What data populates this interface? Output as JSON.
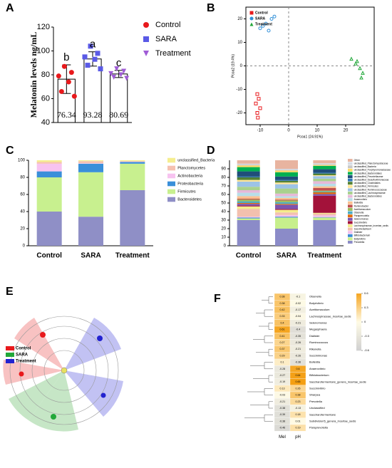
{
  "chart_data": [
    {
      "type": "bar",
      "panel_label": "A",
      "ylabel": "Melatonin levels ng/mL",
      "categories": [
        "Control",
        "SARA",
        "Treatment"
      ],
      "values": [
        76.34,
        93.28,
        80.69
      ],
      "errors": [
        12,
        6,
        3
      ],
      "annotations": [
        "b",
        "a",
        "c"
      ],
      "points": [
        [
          87,
          82,
          79,
          74,
          66,
          62
        ],
        [
          104,
          98,
          95,
          93,
          88,
          85
        ],
        [
          85,
          83,
          81,
          80,
          78,
          77
        ]
      ],
      "colors": [
        "#e8191c",
        "#5a5ae6",
        "#a05cd6"
      ],
      "markers": [
        "circle",
        "square",
        "triangle-down"
      ],
      "ylim": [
        40,
        120
      ],
      "yticks": [
        40,
        60,
        80,
        100,
        120
      ]
    },
    {
      "type": "scatter",
      "panel_label": "B",
      "xlabel": "Pcoa1 (24.91%)",
      "ylabel": "Pcoa2 (19.4%)",
      "xlim": [
        -15,
        30
      ],
      "xticks": [
        -10,
        0,
        10,
        20
      ],
      "ylim": [
        -25,
        25
      ],
      "yticks": [
        -20,
        -10,
        0,
        10,
        20
      ],
      "series": [
        {
          "name": "Control",
          "color": "#e8191c",
          "marker": "square",
          "x": [
            -11,
            -10.5,
            -11.5,
            -10,
            -11,
            -10.8
          ],
          "y": [
            -12,
            -14,
            -16,
            -18,
            -20,
            -22
          ]
        },
        {
          "name": "SARA",
          "color": "#2f8fd8",
          "marker": "circle",
          "x": [
            -10,
            -8,
            -6,
            -7,
            -5,
            -9
          ],
          "y": [
            16,
            18,
            20,
            15,
            21,
            17
          ]
        },
        {
          "name": "Treatment",
          "color": "#22a83a",
          "marker": "triangle",
          "x": [
            22,
            23.5,
            25,
            24,
            26,
            25.5
          ],
          "y": [
            3,
            1,
            -1,
            2,
            -3,
            -5
          ]
        }
      ]
    },
    {
      "type": "stacked_bar",
      "panel_label": "C",
      "categories": [
        "Control",
        "SARA",
        "Treatment"
      ],
      "ylim": [
        0,
        100
      ],
      "yticks": [
        0,
        20,
        40,
        60,
        80,
        100
      ],
      "series": [
        {
          "name": "Bacteroidetes",
          "color": "#8f8fc6",
          "values": [
            40,
            34,
            65
          ]
        },
        {
          "name": "Firmicutes",
          "color": "#c8f08f",
          "values": [
            40,
            52,
            31
          ]
        },
        {
          "name": "Proteobacteria",
          "color": "#3a8fd9",
          "values": [
            7,
            10,
            2
          ]
        },
        {
          "name": "Actinobacteria",
          "color": "#f7c3f0",
          "values": [
            9,
            0.5,
            0.3
          ]
        },
        {
          "name": "Planctomycetes",
          "color": "#f5c1b0",
          "values": [
            2,
            2.5,
            0.7
          ]
        },
        {
          "name": "unclassified_Bacteria",
          "color": "#f5ee8f",
          "values": [
            2,
            1,
            1
          ]
        }
      ]
    },
    {
      "type": "stacked_bar",
      "panel_label": "D",
      "categories": [
        "Control",
        "SARA",
        "Treatment"
      ],
      "ylim": [
        0,
        100
      ],
      "yticks": [
        0,
        10,
        20,
        30,
        40,
        50,
        60,
        70,
        80,
        90
      ],
      "series": [
        {
          "name": "Prevotella",
          "color": "#8b8bc8",
          "values": [
            30,
            20,
            30
          ]
        },
        {
          "name": "Butyrivibrio",
          "color": "#c7ef8c",
          "values": [
            2,
            13,
            3
          ]
        },
        {
          "name": "Bifidobacterium",
          "color": "#3b8bd6",
          "values": [
            1,
            1,
            0.5
          ]
        },
        {
          "name": "Dialister",
          "color": "#f4c2ee",
          "values": [
            1,
            2,
            2
          ]
        },
        {
          "name": "Succiniclasticum",
          "color": "#f3c0ae",
          "values": [
            9,
            3,
            2
          ]
        },
        {
          "name": "Lachnospiraceae_incertae_sedis",
          "color": "#f3ec8c",
          "values": [
            3,
            3,
            1
          ]
        },
        {
          "name": "Succinivibrio",
          "color": "#a3123a",
          "values": [
            1,
            1,
            20
          ]
        },
        {
          "name": "Selenomonas",
          "color": "#7c54b0",
          "values": [
            2,
            5,
            2
          ]
        },
        {
          "name": "Paraprevotella",
          "color": "#e36c0a",
          "values": [
            1,
            1,
            2
          ]
        },
        {
          "name": "Olsenella",
          "color": "#4bacc6",
          "values": [
            2,
            2,
            1
          ]
        },
        {
          "name": "Acetitomaculum",
          "color": "#9bbb59",
          "values": [
            2,
            2,
            1
          ]
        },
        {
          "name": "Ruminobacter",
          "color": "#c0504d",
          "values": [
            1,
            1,
            3
          ]
        },
        {
          "name": "Bulleidia",
          "color": "#fac090",
          "values": [
            3,
            2,
            2
          ]
        },
        {
          "name": "Anaerovibrio",
          "color": "#b7dee8",
          "values": [
            4,
            2,
            3
          ]
        },
        {
          "name": "unclassified_Bacteroidetes",
          "color": "#e6b9d8",
          "values": [
            3,
            3,
            3
          ]
        },
        {
          "name": "unclassified_Lachnospiraceae",
          "color": "#a9d18e",
          "values": [
            4,
            6,
            3
          ]
        },
        {
          "name": "unclassified_Ruminococcaceae",
          "color": "#9dc3e6",
          "values": [
            6,
            5,
            3
          ]
        },
        {
          "name": "unclassified_Firmicutes",
          "color": "#ffe699",
          "values": [
            2,
            2,
            1
          ]
        },
        {
          "name": "unclassified_Clostridiales",
          "color": "#548235",
          "values": [
            3,
            2,
            2
          ]
        },
        {
          "name": "unclassified_Desulfovibrionaceae",
          "color": "#2e75b6",
          "values": [
            1,
            1,
            1
          ]
        },
        {
          "name": "unclassified_Prevotellaceae",
          "color": "#1f4e79",
          "values": [
            6,
            4,
            4
          ]
        },
        {
          "name": "unclassified_Bacteroidales",
          "color": "#00b050",
          "values": [
            5,
            5,
            4
          ]
        },
        {
          "name": "unclassified_Porphyromonadaceae",
          "color": "#ffd966",
          "values": [
            2,
            2,
            1
          ]
        },
        {
          "name": "unclassified_Bacteria",
          "color": "#c9c9c9",
          "values": [
            1,
            1,
            1
          ]
        },
        {
          "name": "unclassified_Planctomycetaceae",
          "color": "#d6dce5",
          "values": [
            1,
            1,
            1
          ]
        },
        {
          "name": "Other",
          "color": "#e8b4a0",
          "values": [
            4,
            10,
            3.5
          ]
        }
      ]
    },
    {
      "type": "heatmap",
      "panel_label": "F",
      "columns": [
        "Mel",
        "pH"
      ],
      "rows": [
        "Olsenella",
        "Butyrivibrio",
        "Acetitomaculum",
        "Lachnospiraceae_incertae_sedis",
        "Selenomonas",
        "Megasphaera",
        "Dialister",
        "Ruminococcus",
        "Rikenella",
        "Succinimonas",
        "Bulleidia",
        "Anaerovibrio",
        "Bifidobacterium",
        "Saccharofermentans_genera_incertae_sedis",
        "Succinivibrio",
        "Sharpea",
        "Prevotella",
        "Unclassified",
        "Saccharofermentans",
        "Subdivision5_genera_incertae_sedis",
        "Paraprevotella"
      ],
      "values": [
        [
          0.38,
          -0.1
        ],
        [
          0.38,
          -0.02
        ],
        [
          0.42,
          -0.17
        ],
        [
          0.33,
          -0.04
        ],
        [
          0.4,
          -0.21
        ],
        [
          0.61,
          -0.4
        ],
        [
          0.41,
          -0.35
        ],
        [
          0.27,
          -0.26
        ],
        [
          0.37,
          -0.21
        ],
        [
          0.29,
          -0.26
        ],
        [
          0.1,
          -0.36
        ],
        [
          -0.28,
          0.6
        ],
        [
          -0.27,
          0.64
        ],
        [
          -0.19,
          0.65
        ],
        [
          0.13,
          0.26
        ],
        [
          -0.03,
          0.38
        ],
        [
          -0.21,
          0.23
        ],
        [
          -0.38,
          -0.13
        ],
        [
          -0.39,
          0.18
        ],
        [
          -0.38,
          0.01
        ],
        [
          -0.46,
          0.19
        ]
      ],
      "clim": [
        -0.6,
        0.6
      ],
      "cticks": [
        -0.6,
        -0.3,
        0,
        0.3,
        0.6
      ],
      "colors": [
        "#d0d0d0",
        "#fffbe6",
        "#f5a623"
      ]
    }
  ],
  "cladogram": {
    "panel_label": "E",
    "legend": [
      {
        "name": "Control",
        "color": "#e8191c"
      },
      {
        "name": "SARA",
        "color": "#22a83a"
      },
      {
        "name": "Treatment",
        "color": "#2222d0"
      }
    ]
  }
}
